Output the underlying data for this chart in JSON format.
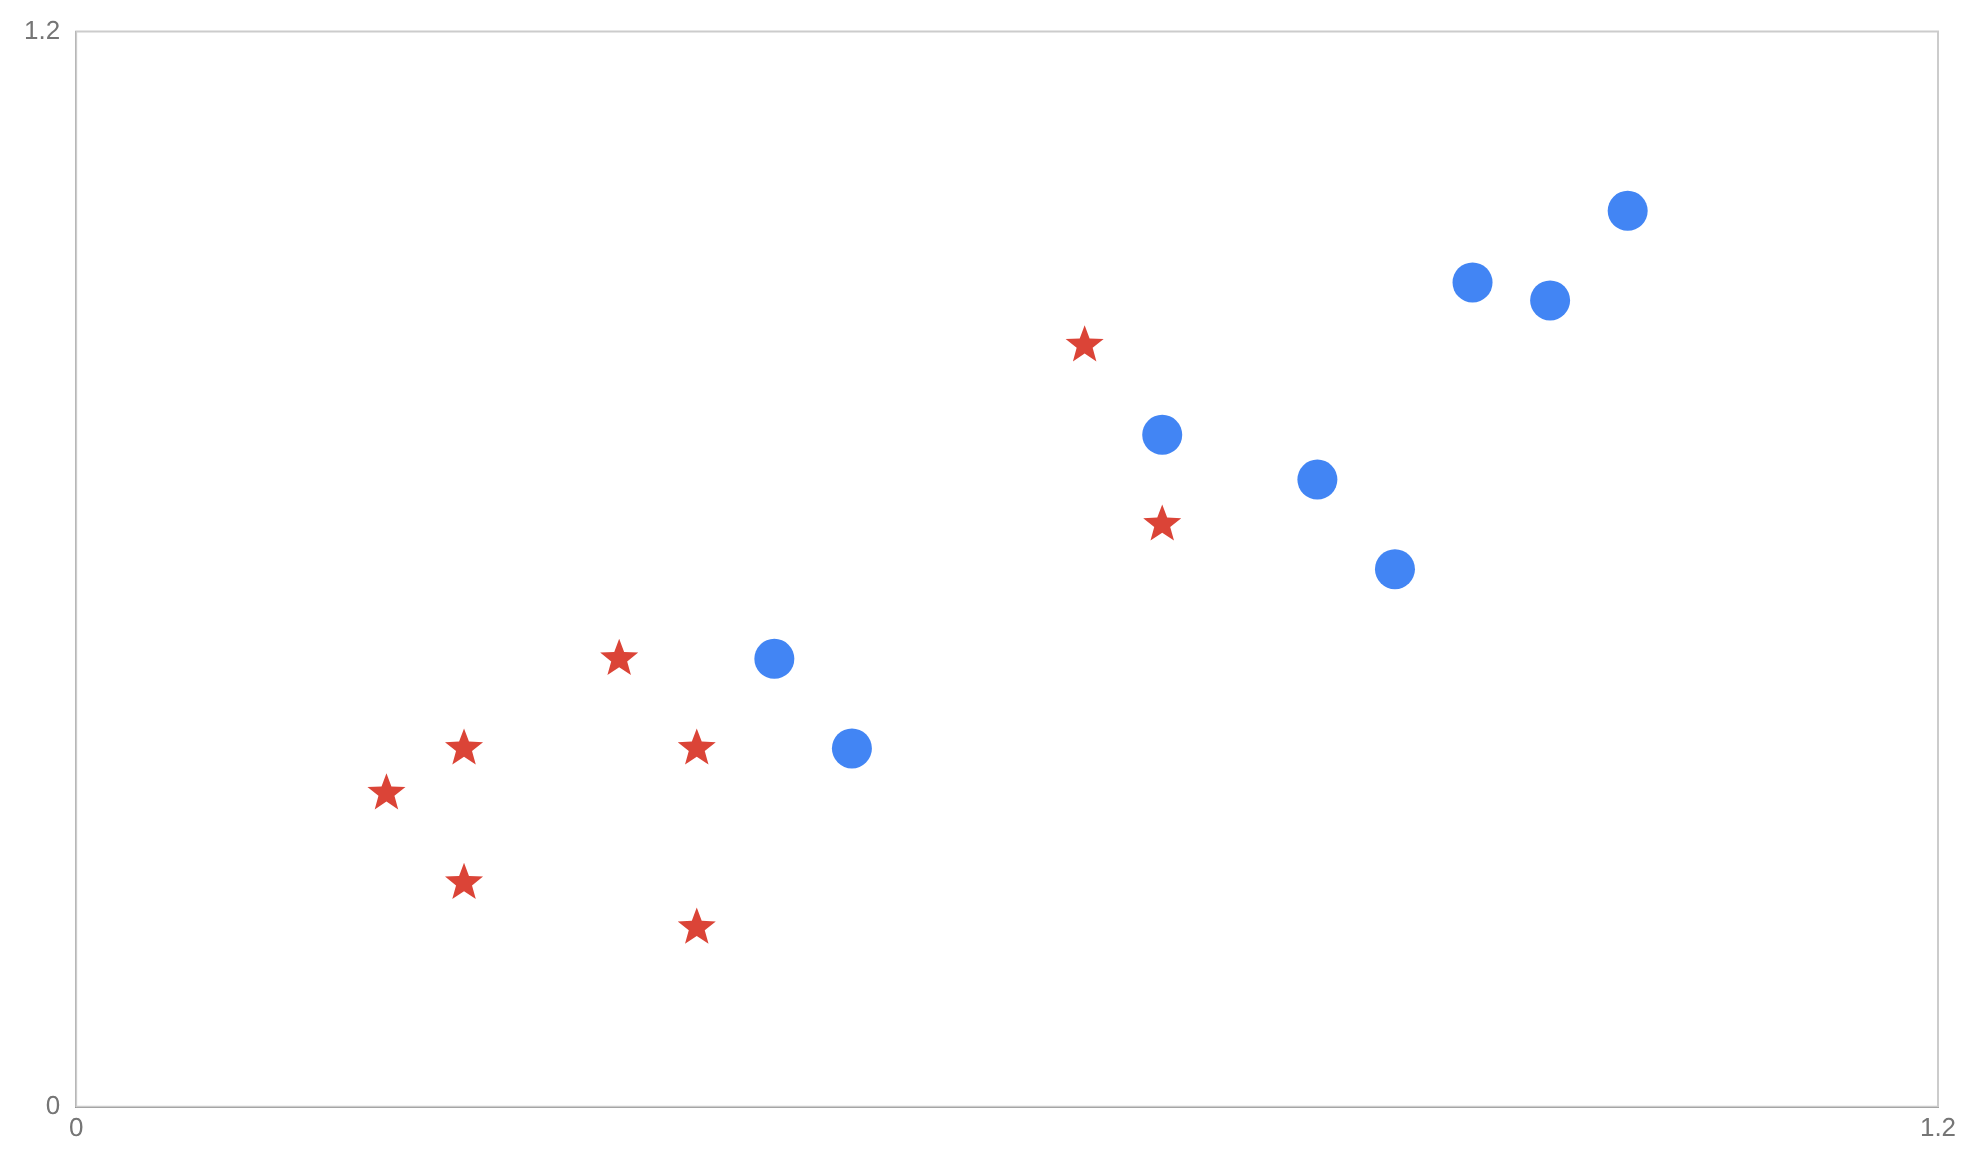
{
  "chart_data": {
    "type": "scatter",
    "xlim": [
      0,
      1.2
    ],
    "ylim": [
      0,
      1.2
    ],
    "xticks": [
      0,
      1.2
    ],
    "yticks": [
      0,
      1.2
    ],
    "grid": false,
    "series": [
      {
        "color": "#4285f4",
        "marker": "circle",
        "x": [
          0.45,
          0.5,
          0.7,
          0.8,
          0.85,
          0.9,
          0.95,
          1.0
        ],
        "values": [
          0.5,
          0.4,
          0.75,
          0.7,
          0.6,
          0.92,
          0.9,
          1.0
        ]
      },
      {
        "color": "#db4437",
        "marker": "star",
        "x": [
          0.2,
          0.25,
          0.25,
          0.35,
          0.4,
          0.4,
          0.65,
          0.7
        ],
        "values": [
          0.35,
          0.4,
          0.25,
          0.5,
          0.4,
          0.2,
          0.85,
          0.65
        ]
      }
    ]
  }
}
